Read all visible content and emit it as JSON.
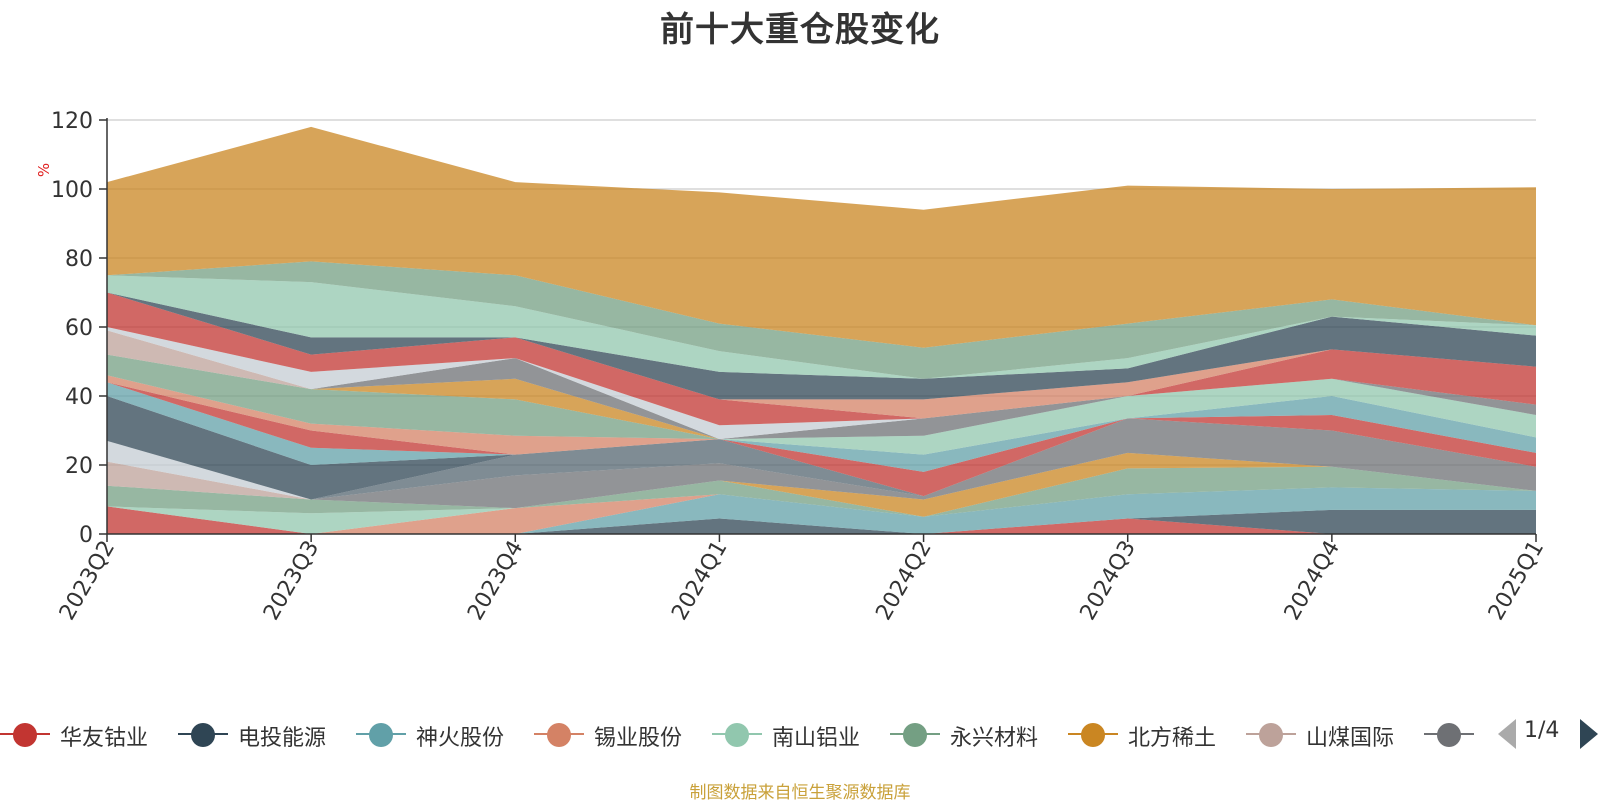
{
  "title": "前十大重仓股变化",
  "footer": "制图数据来自恒生聚源数据库",
  "pager": "1/4",
  "legend_colors": [
    "#c23531",
    "#2f4554",
    "#61a0a8",
    "#d48265",
    "#91c7ae",
    "#749f83",
    "#ca8622",
    "#bda29a",
    "#6e7074"
  ],
  "chart_data": {
    "type": "area",
    "ylabel": "%",
    "ylim": [
      0,
      120
    ],
    "yticks": [
      0,
      20,
      40,
      60,
      80,
      100,
      120
    ],
    "categories": [
      "2023Q2",
      "2023Q3",
      "2023Q4",
      "2024Q1",
      "2024Q2",
      "2024Q3",
      "2024Q4",
      "2025Q1"
    ],
    "grid": true,
    "legend_position": "bottom",
    "series": [
      {
        "name": "华友钴业",
        "color": "#c23531",
        "values": [
          8,
          0,
          0,
          0,
          0,
          4.5,
          0,
          0
        ]
      },
      {
        "name": "电投能源",
        "color": "#2f4554",
        "values": [
          0,
          0,
          0,
          4.5,
          0,
          0,
          7,
          7
        ]
      },
      {
        "name": "神火股份",
        "color": "#61a0a8",
        "values": [
          0,
          0,
          0,
          7,
          5,
          7,
          6.5,
          5.5
        ]
      },
      {
        "name": "锡业股份",
        "color": "#d48265",
        "values": [
          0,
          0,
          7.5,
          0,
          0,
          0,
          0,
          0
        ]
      },
      {
        "name": "南山铝业",
        "color": "#91c7ae",
        "values": [
          0,
          6,
          0,
          0,
          0,
          0,
          0,
          0
        ]
      },
      {
        "name": "永兴材料",
        "color": "#749f83",
        "values": [
          6,
          4,
          0,
          4,
          0,
          7.5,
          6,
          0
        ]
      },
      {
        "name": "北方稀土",
        "color": "#ca8622",
        "values": [
          0,
          0,
          0,
          0,
          5,
          4.5,
          0,
          0
        ]
      },
      {
        "name": "山煤国际",
        "color": "#bda29a",
        "values": [
          7,
          0,
          0,
          0,
          0,
          0,
          0,
          0
        ]
      },
      {
        "name": "",
        "color": "#6e7074",
        "values": [
          0,
          0,
          9.5,
          5,
          1,
          10,
          10.5,
          7
        ]
      },
      {
        "name": "",
        "color": "#546570",
        "values": [
          0,
          0,
          6,
          7,
          0,
          0,
          0,
          0
        ]
      },
      {
        "name": "",
        "color": "#c4ccd3",
        "values": [
          6,
          0,
          0,
          0,
          0,
          0,
          0,
          0
        ]
      },
      {
        "name": "",
        "color": "#2f4554",
        "values": [
          13,
          10,
          0,
          0,
          0,
          0,
          0,
          0
        ]
      },
      {
        "name": "",
        "color": "#61a0a8",
        "values": [
          4,
          5,
          0,
          0,
          0,
          0,
          0,
          0
        ]
      },
      {
        "name": "",
        "color": "#c23531",
        "values": [
          0,
          5,
          0,
          0,
          7,
          0,
          4.5,
          4
        ]
      },
      {
        "name": "",
        "color": "#d48265",
        "values": [
          2,
          2,
          5.5,
          0,
          0,
          0,
          0,
          0
        ]
      },
      {
        "name": "",
        "color": "#61a0a8",
        "values": [
          0,
          0,
          0,
          0,
          5,
          0,
          5.5,
          4.5
        ]
      },
      {
        "name": "",
        "color": "#749f83",
        "values": [
          6,
          10,
          10.5,
          0,
          0,
          0,
          0,
          0
        ]
      },
      {
        "name": "",
        "color": "#ca8622",
        "values": [
          0,
          0,
          6,
          0,
          0,
          0,
          0,
          0
        ]
      },
      {
        "name": "",
        "color": "#bda29a",
        "values": [
          7,
          0,
          0,
          0,
          0,
          0,
          0,
          0
        ]
      },
      {
        "name": "",
        "color": "#91c7ae",
        "values": [
          0,
          0,
          0,
          0,
          5.5,
          6.5,
          5,
          6.5
        ]
      },
      {
        "name": "",
        "color": "#6e7074",
        "values": [
          0,
          0,
          6,
          0,
          5,
          0,
          0,
          3
        ]
      },
      {
        "name": "",
        "color": "#c4ccd3",
        "values": [
          1,
          5,
          0,
          4,
          0,
          0,
          0,
          0
        ]
      },
      {
        "name": "",
        "color": "#c23531",
        "values": [
          10,
          5,
          6,
          7.5,
          0,
          0,
          8.5,
          11
        ]
      },
      {
        "name": "",
        "color": "#d48265",
        "values": [
          0,
          0,
          0,
          0,
          5.5,
          4,
          0,
          0
        ]
      },
      {
        "name": "",
        "color": "#2f4554",
        "values": [
          0,
          5,
          0,
          8,
          6,
          4,
          9.5,
          9
        ]
      },
      {
        "name": "",
        "color": "#91c7ae",
        "values": [
          5,
          16,
          9,
          6,
          0,
          3,
          0,
          3
        ]
      },
      {
        "name": "",
        "color": "#749f83",
        "values": [
          0,
          6,
          9,
          8,
          9,
          10,
          5,
          0
        ]
      },
      {
        "name": "",
        "color": "#ca8622",
        "values": [
          27,
          39,
          27,
          38,
          40,
          40,
          32,
          40
        ]
      }
    ]
  }
}
